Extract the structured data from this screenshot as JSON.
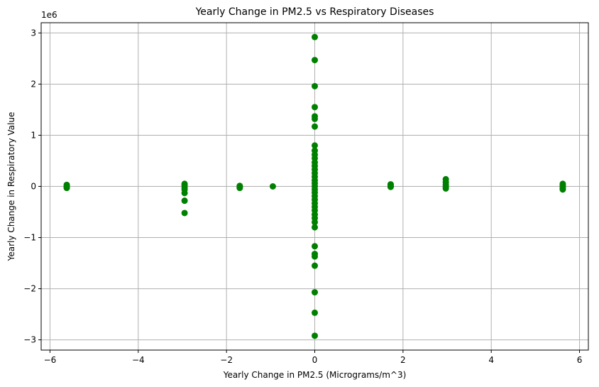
{
  "chart_data": {
    "type": "scatter",
    "title": "Yearly Change in PM2.5 vs Respiratory Diseases",
    "xlabel": "Yearly Change in PM2.5 (Micrograms/m^3)",
    "ylabel": "Yearly Change in Respiratory Value",
    "y_offset_label": "1e6",
    "xlim": [
      -6.2,
      6.2
    ],
    "ylim": [
      -3.2,
      3.2
    ],
    "x_ticks": [
      -6,
      -4,
      -2,
      0,
      2,
      4,
      6
    ],
    "x_tick_labels": [
      "−6",
      "−4",
      "−2",
      "0",
      "2",
      "4",
      "6"
    ],
    "y_ticks": [
      -3,
      -2,
      -1,
      0,
      1,
      2,
      3
    ],
    "y_tick_labels": [
      "−3",
      "−2",
      "−1",
      "0",
      "1",
      "2",
      "3"
    ],
    "grid": true,
    "marker_color": "#008000",
    "series": [
      {
        "points": [
          [
            -5.62,
            0.03
          ],
          [
            -5.62,
            0.01
          ],
          [
            -5.62,
            -0.01
          ],
          [
            -5.62,
            -0.03
          ],
          [
            -2.95,
            0.05
          ],
          [
            -2.95,
            0.02
          ],
          [
            -2.95,
            -0.02
          ],
          [
            -2.95,
            -0.06
          ],
          [
            -2.95,
            -0.13
          ],
          [
            -2.95,
            -0.28
          ],
          [
            -2.95,
            -0.52
          ],
          [
            -1.7,
            0.01
          ],
          [
            -1.7,
            -0.01
          ],
          [
            -1.7,
            -0.03
          ],
          [
            -0.95,
            0.0
          ],
          [
            0,
            2.92
          ],
          [
            0,
            2.47
          ],
          [
            0,
            1.96
          ],
          [
            0,
            1.55
          ],
          [
            0,
            1.37
          ],
          [
            0,
            1.32
          ],
          [
            0,
            1.17
          ],
          [
            0,
            0.8
          ],
          [
            0,
            0.7
          ],
          [
            0,
            0.62
          ],
          [
            0,
            0.55
          ],
          [
            0,
            0.47
          ],
          [
            0,
            0.4
          ],
          [
            0,
            0.33
          ],
          [
            0,
            0.26
          ],
          [
            0,
            0.19
          ],
          [
            0,
            0.12
          ],
          [
            0,
            0.06
          ],
          [
            0,
            0.0
          ],
          [
            0,
            -0.06
          ],
          [
            0,
            -0.12
          ],
          [
            0,
            -0.19
          ],
          [
            0,
            -0.26
          ],
          [
            0,
            -0.33
          ],
          [
            0,
            -0.4
          ],
          [
            0,
            -0.47
          ],
          [
            0,
            -0.55
          ],
          [
            0,
            -0.62
          ],
          [
            0,
            -0.7
          ],
          [
            0,
            -0.8
          ],
          [
            0,
            -1.17
          ],
          [
            0,
            -1.32
          ],
          [
            0,
            -1.37
          ],
          [
            0,
            -1.55
          ],
          [
            0,
            -2.07
          ],
          [
            0,
            -2.47
          ],
          [
            0,
            -2.92
          ],
          [
            1.72,
            0.04
          ],
          [
            1.72,
            0.02
          ],
          [
            1.72,
            0.0
          ],
          [
            1.72,
            -0.01
          ],
          [
            2.97,
            0.14
          ],
          [
            2.97,
            0.08
          ],
          [
            2.97,
            0.03
          ],
          [
            2.97,
            -0.01
          ],
          [
            2.97,
            -0.04
          ],
          [
            5.62,
            0.05
          ],
          [
            5.62,
            0.02
          ],
          [
            5.62,
            -0.01
          ],
          [
            5.62,
            -0.04
          ],
          [
            5.62,
            -0.06
          ]
        ]
      }
    ]
  }
}
